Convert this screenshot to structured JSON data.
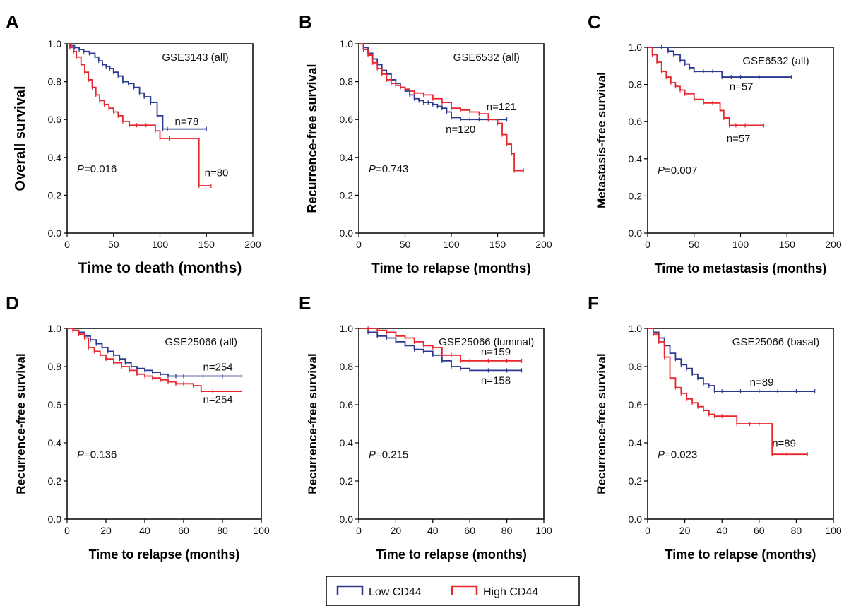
{
  "legend": {
    "items": [
      {
        "label": "Low CD44",
        "color": "#2b3990"
      },
      {
        "label": "High CD44",
        "color": "#e8262d"
      }
    ]
  },
  "chart_data": [
    {
      "panel": "A",
      "type": "line",
      "title": "GSE3143 (all)",
      "xlabel": "Time to death (months)",
      "ylabel": "Overall survival",
      "xlim": [
        0,
        200
      ],
      "ylim": [
        0,
        1.0
      ],
      "xticks": [
        0,
        50,
        100,
        150,
        200
      ],
      "yticks": [
        "0.0",
        "0.2",
        "0.4",
        "0.6",
        "0.8",
        "1.0"
      ],
      "p_value": "=0.016",
      "series": [
        {
          "name": "Low CD44",
          "color": "#2b3990",
          "n_label": "n=78",
          "x": [
            0,
            4,
            8,
            13,
            18,
            24,
            30,
            34,
            38,
            42,
            46,
            50,
            55,
            60,
            66,
            72,
            78,
            83,
            90,
            97,
            103,
            108,
            150
          ],
          "y": [
            1.0,
            0.99,
            0.98,
            0.97,
            0.96,
            0.95,
            0.93,
            0.91,
            0.89,
            0.88,
            0.87,
            0.85,
            0.83,
            0.8,
            0.79,
            0.77,
            0.74,
            0.72,
            0.69,
            0.62,
            0.55,
            0.55,
            0.55
          ]
        },
        {
          "name": "High CD44",
          "color": "#e8262d",
          "n_label": "n=80",
          "x": [
            0,
            3,
            7,
            10,
            15,
            19,
            23,
            27,
            31,
            35,
            40,
            45,
            50,
            55,
            60,
            67,
            75,
            85,
            95,
            100,
            110,
            142,
            155
          ],
          "y": [
            1.0,
            0.98,
            0.96,
            0.93,
            0.89,
            0.85,
            0.81,
            0.77,
            0.73,
            0.7,
            0.68,
            0.66,
            0.64,
            0.62,
            0.59,
            0.57,
            0.57,
            0.57,
            0.54,
            0.5,
            0.5,
            0.25,
            0.25
          ]
        }
      ],
      "annotations": [
        {
          "text": "n=78",
          "x": 116,
          "y": 0.57
        },
        {
          "text": "n=80",
          "x": 148,
          "y": 0.3
        }
      ]
    },
    {
      "panel": "B",
      "type": "line",
      "title": "GSE6532 (all)",
      "xlabel": "Time to relapse (months)",
      "ylabel": "Recurrence-free survival",
      "xlim": [
        0,
        200
      ],
      "ylim": [
        0,
        1.0
      ],
      "xticks": [
        0,
        50,
        100,
        150,
        200
      ],
      "yticks": [
        "0.0",
        "0.2",
        "0.4",
        "0.6",
        "0.8",
        "1.0"
      ],
      "p_value": "=0.743",
      "series": [
        {
          "name": "Low CD44",
          "color": "#2b3990",
          "n_label": "n=120",
          "x": [
            0,
            5,
            10,
            15,
            20,
            25,
            30,
            35,
            40,
            45,
            50,
            55,
            60,
            65,
            70,
            75,
            80,
            85,
            90,
            95,
            100,
            110,
            120,
            130,
            140,
            160
          ],
          "y": [
            1.0,
            0.98,
            0.95,
            0.92,
            0.89,
            0.86,
            0.84,
            0.81,
            0.79,
            0.77,
            0.75,
            0.73,
            0.71,
            0.7,
            0.69,
            0.69,
            0.68,
            0.67,
            0.66,
            0.64,
            0.61,
            0.6,
            0.6,
            0.6,
            0.6,
            0.6
          ]
        },
        {
          "name": "High CD44",
          "color": "#e8262d",
          "n_label": "n=121",
          "x": [
            0,
            5,
            10,
            15,
            20,
            25,
            30,
            35,
            40,
            45,
            50,
            55,
            60,
            70,
            80,
            90,
            100,
            110,
            120,
            130,
            140,
            150,
            155,
            160,
            165,
            168,
            178
          ],
          "y": [
            1.0,
            0.97,
            0.94,
            0.9,
            0.87,
            0.84,
            0.81,
            0.79,
            0.78,
            0.77,
            0.76,
            0.75,
            0.74,
            0.73,
            0.71,
            0.69,
            0.66,
            0.65,
            0.64,
            0.63,
            0.6,
            0.58,
            0.52,
            0.47,
            0.42,
            0.33,
            0.33
          ]
        }
      ],
      "annotations": [
        {
          "text": "n=121",
          "x": 138,
          "y": 0.65
        },
        {
          "text": "n=120",
          "x": 94,
          "y": 0.53
        }
      ]
    },
    {
      "panel": "C",
      "type": "line",
      "title": "GSE6532 (all)",
      "xlabel": "Time to metastasis (months)",
      "ylabel": "Metastasis-free survival",
      "xlim": [
        0,
        200
      ],
      "ylim": [
        0,
        1.0
      ],
      "xticks": [
        0,
        50,
        100,
        150,
        200
      ],
      "yticks": [
        "0.0",
        "0.2",
        "0.4",
        "0.6",
        "0.8",
        "1.0"
      ],
      "p_value": "=0.007",
      "series": [
        {
          "name": "Low CD44",
          "color": "#2b3990",
          "n_label": "n=57",
          "x": [
            0,
            15,
            22,
            28,
            35,
            40,
            45,
            50,
            60,
            70,
            80,
            90,
            100,
            120,
            155
          ],
          "y": [
            1.0,
            1.0,
            0.98,
            0.96,
            0.93,
            0.91,
            0.89,
            0.87,
            0.87,
            0.87,
            0.84,
            0.84,
            0.84,
            0.84,
            0.84
          ]
        },
        {
          "name": "High CD44",
          "color": "#e8262d",
          "n_label": "n=57",
          "x": [
            0,
            5,
            10,
            15,
            20,
            25,
            30,
            35,
            40,
            50,
            60,
            70,
            78,
            82,
            88,
            95,
            105,
            125
          ],
          "y": [
            1.0,
            0.96,
            0.92,
            0.87,
            0.84,
            0.81,
            0.79,
            0.77,
            0.75,
            0.72,
            0.7,
            0.7,
            0.66,
            0.62,
            0.58,
            0.58,
            0.58,
            0.58
          ]
        }
      ],
      "annotations": [
        {
          "text": "n=57",
          "x": 88,
          "y": 0.77
        },
        {
          "text": "n=57",
          "x": 85,
          "y": 0.49
        }
      ]
    },
    {
      "panel": "D",
      "type": "line",
      "title": "GSE25066 (all)",
      "xlabel": "Time to relapse (months)",
      "ylabel": "Recurrence-free survival",
      "xlim": [
        0,
        100
      ],
      "ylim": [
        0,
        1.0
      ],
      "xticks": [
        0,
        20,
        40,
        60,
        80,
        100
      ],
      "yticks": [
        "0.0",
        "0.2",
        "0.4",
        "0.6",
        "0.8",
        "1.0"
      ],
      "p_value": "=0.136",
      "series": [
        {
          "name": "Low CD44",
          "color": "#2b3990",
          "n_label": "n=254",
          "x": [
            0,
            3,
            6,
            9,
            12,
            15,
            18,
            21,
            24,
            27,
            30,
            33,
            36,
            40,
            44,
            48,
            52,
            56,
            60,
            70,
            80,
            90
          ],
          "y": [
            1.0,
            0.99,
            0.98,
            0.96,
            0.94,
            0.92,
            0.9,
            0.88,
            0.86,
            0.84,
            0.82,
            0.8,
            0.79,
            0.78,
            0.77,
            0.76,
            0.75,
            0.75,
            0.75,
            0.75,
            0.75,
            0.75
          ]
        },
        {
          "name": "High CD44",
          "color": "#e8262d",
          "n_label": "n=254",
          "x": [
            0,
            3,
            6,
            9,
            11,
            14,
            17,
            20,
            24,
            28,
            32,
            36,
            40,
            44,
            48,
            52,
            56,
            60,
            65,
            69,
            75,
            90
          ],
          "y": [
            1.0,
            0.99,
            0.97,
            0.95,
            0.9,
            0.88,
            0.86,
            0.84,
            0.82,
            0.8,
            0.78,
            0.76,
            0.75,
            0.74,
            0.73,
            0.72,
            0.71,
            0.71,
            0.7,
            0.67,
            0.67,
            0.67
          ]
        }
      ],
      "annotations": [
        {
          "text": "n=254",
          "x": 70,
          "y": 0.78
        },
        {
          "text": "n=254",
          "x": 70,
          "y": 0.61
        }
      ]
    },
    {
      "panel": "E",
      "type": "line",
      "title": "GSE25066 (luminal)",
      "xlabel": "Time to relapse (months)",
      "ylabel": "Recurrence-free survival",
      "xlim": [
        0,
        100
      ],
      "ylim": [
        0,
        1.0
      ],
      "xticks": [
        0,
        20,
        40,
        60,
        80,
        100
      ],
      "yticks": [
        "0.0",
        "0.2",
        "0.4",
        "0.6",
        "0.8",
        "1.0"
      ],
      "p_value": "=0.215",
      "series": [
        {
          "name": "Low CD44",
          "color": "#2b3990",
          "n_label": "n=158",
          "x": [
            0,
            5,
            10,
            15,
            20,
            25,
            30,
            35,
            40,
            45,
            50,
            55,
            60,
            70,
            80,
            88
          ],
          "y": [
            1.0,
            0.98,
            0.96,
            0.95,
            0.93,
            0.91,
            0.89,
            0.88,
            0.86,
            0.83,
            0.8,
            0.79,
            0.78,
            0.78,
            0.78,
            0.78
          ]
        },
        {
          "name": "High CD44",
          "color": "#e8262d",
          "n_label": "n=159",
          "x": [
            0,
            5,
            10,
            15,
            20,
            25,
            30,
            35,
            40,
            45,
            50,
            55,
            60,
            70,
            80,
            88
          ],
          "y": [
            1.0,
            1.0,
            0.99,
            0.98,
            0.96,
            0.95,
            0.93,
            0.91,
            0.9,
            0.86,
            0.86,
            0.83,
            0.83,
            0.83,
            0.83,
            0.83
          ]
        }
      ],
      "annotations": [
        {
          "text": "n=159",
          "x": 66,
          "y": 0.86
        },
        {
          "text": "n=158",
          "x": 66,
          "y": 0.71
        }
      ]
    },
    {
      "panel": "F",
      "type": "line",
      "title": "GSE25066 (basal)",
      "xlabel": "Time to relapse (months)",
      "ylabel": "Recurrence-free survival",
      "xlim": [
        0,
        100
      ],
      "ylim": [
        0,
        1.0
      ],
      "xticks": [
        0,
        20,
        40,
        60,
        80,
        100
      ],
      "yticks": [
        "0.0",
        "0.2",
        "0.4",
        "0.6",
        "0.8",
        "1.0"
      ],
      "p_value": "=0.023",
      "series": [
        {
          "name": "Low CD44",
          "color": "#2b3990",
          "n_label": "n=89",
          "x": [
            0,
            3,
            6,
            9,
            12,
            15,
            18,
            21,
            24,
            27,
            30,
            33,
            36,
            40,
            50,
            60,
            70,
            80,
            90
          ],
          "y": [
            1.0,
            0.98,
            0.95,
            0.91,
            0.87,
            0.84,
            0.81,
            0.79,
            0.76,
            0.74,
            0.71,
            0.7,
            0.67,
            0.67,
            0.67,
            0.67,
            0.67,
            0.67,
            0.67
          ]
        },
        {
          "name": "High CD44",
          "color": "#e8262d",
          "n_label": "n=89",
          "x": [
            0,
            3,
            6,
            9,
            12,
            15,
            18,
            21,
            24,
            27,
            30,
            33,
            36,
            40,
            48,
            55,
            60,
            67,
            75,
            86
          ],
          "y": [
            1.0,
            0.97,
            0.93,
            0.85,
            0.74,
            0.69,
            0.66,
            0.63,
            0.61,
            0.59,
            0.57,
            0.55,
            0.54,
            0.54,
            0.5,
            0.5,
            0.5,
            0.34,
            0.34,
            0.34
          ]
        }
      ],
      "annotations": [
        {
          "text": "n=89",
          "x": 55,
          "y": 0.7
        },
        {
          "text": "n=89",
          "x": 67,
          "y": 0.38
        }
      ]
    }
  ]
}
